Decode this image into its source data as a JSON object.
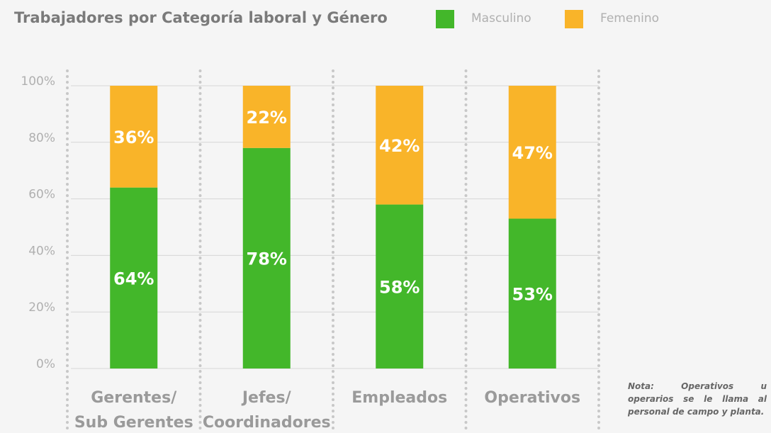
{
  "chart_data": {
    "type": "stacked-bar",
    "title": "Trabajadores por Categoría laboral y Género",
    "categories": [
      [
        "Gerentes/",
        "Sub Gerentes"
      ],
      [
        "Jefes/",
        "Coordinadores"
      ],
      [
        "Empleados"
      ],
      [
        "Operativos"
      ]
    ],
    "series": [
      {
        "name": "Masculino",
        "color": "#43b72a",
        "values": [
          64,
          78,
          58,
          53
        ],
        "value_labels": [
          "64%",
          "78%",
          "58%",
          "53%"
        ]
      },
      {
        "name": "Femenino",
        "color": "#f9b429",
        "values": [
          36,
          22,
          42,
          47
        ],
        "value_labels": [
          "36%",
          "22%",
          "42%",
          "47%"
        ]
      }
    ],
    "ylim": [
      0,
      100
    ],
    "yticks": [
      {
        "value": 0,
        "label": "0%"
      },
      {
        "value": 20,
        "label": "20%"
      },
      {
        "value": 40,
        "label": "40%"
      },
      {
        "value": 60,
        "label": "60%"
      },
      {
        "value": 80,
        "label": "80%"
      },
      {
        "value": 100,
        "label": "100%"
      }
    ],
    "grid": true,
    "legend": "top",
    "note": "Nota: Operativos u operarios se le llama al personal de campo y planta."
  }
}
